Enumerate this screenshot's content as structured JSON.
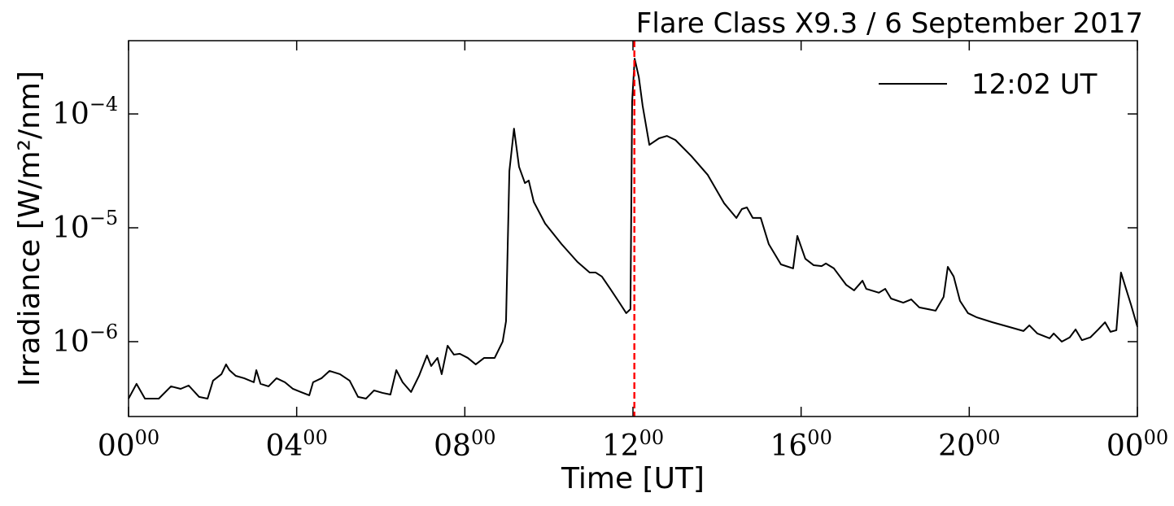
{
  "chart_data": {
    "type": "line",
    "title": "Flare Class X9.3 / 6 September 2017",
    "xlabel": "Time [UT]",
    "ylabel": "Irradiance [W/m²/nm]",
    "yscale": "log",
    "legend": "upper right",
    "x": [
      0,
      0.19,
      0.39,
      0.72,
      1.01,
      1.24,
      1.43,
      1.68,
      1.88,
      2.01,
      2.21,
      2.32,
      2.4,
      2.55,
      2.75,
      2.98,
      3.04,
      3.14,
      3.33,
      3.52,
      3.72,
      3.91,
      4.1,
      4.3,
      4.39,
      4.59,
      4.78,
      5.03,
      5.26,
      5.46,
      5.65,
      5.84,
      6.04,
      6.23,
      6.37,
      6.52,
      6.72,
      6.91,
      7.1,
      7.2,
      7.35,
      7.45,
      7.59,
      7.74,
      7.88,
      8.07,
      8.26,
      8.46,
      8.71,
      8.9,
      8.98,
      9.06,
      9.17,
      9.29,
      9.43,
      9.52,
      9.64,
      9.91,
      10.3,
      10.68,
      10.97,
      11.11,
      11.26,
      11.46,
      11.65,
      11.84,
      11.94,
      11.98,
      12.04,
      12.14,
      12.23,
      12.39,
      12.62,
      12.81,
      13.01,
      13.39,
      13.78,
      14.17,
      14.46,
      14.59,
      14.71,
      14.85,
      15.04,
      15.23,
      15.52,
      15.81,
      15.91,
      16.1,
      16.3,
      16.49,
      16.59,
      16.78,
      17.07,
      17.26,
      17.46,
      17.55,
      17.85,
      18.0,
      18.14,
      18.43,
      18.62,
      18.81,
      19.2,
      19.39,
      19.49,
      19.63,
      19.78,
      19.97,
      20.17,
      20.55,
      20.94,
      21.29,
      21.43,
      21.62,
      21.91,
      22.01,
      22.2,
      22.39,
      22.53,
      22.68,
      22.88,
      23.07,
      23.23,
      23.36,
      23.5,
      23.61,
      23.73,
      23.85,
      24.0
    ],
    "series": [
      {
        "name": "12:02 UT",
        "color": "#000000",
        "values": [
          3.16e-07,
          4.26e-07,
          3.16e-07,
          3.16e-07,
          4.05e-07,
          3.85e-07,
          4.12e-07,
          3.27e-07,
          3.16e-07,
          4.54e-07,
          5.18e-07,
          6.31e-07,
          5.62e-07,
          5.01e-07,
          4.77e-07,
          4.4e-07,
          5.62e-07,
          4.26e-07,
          4.05e-07,
          4.77e-07,
          4.4e-07,
          3.85e-07,
          3.61e-07,
          3.38e-07,
          4.4e-07,
          4.77e-07,
          5.53e-07,
          5.18e-07,
          4.54e-07,
          3.27e-07,
          3.16e-07,
          3.73e-07,
          3.55e-07,
          3.43e-07,
          5.62e-07,
          4.4e-07,
          3.61e-07,
          5.01e-07,
          7.56e-07,
          6.11e-07,
          7.2e-07,
          5.18e-07,
          9.21e-07,
          7.69e-07,
          7.82e-07,
          7.2e-07,
          6.31e-07,
          7.2e-07,
          7.2e-07,
          1e-06,
          1.51e-06,
          3.16e-05,
          7.43e-05,
          3.43e-05,
          2.47e-05,
          2.6e-05,
          1.69e-05,
          1.09e-05,
          7.2e-06,
          5.01e-06,
          4.05e-06,
          4.05e-06,
          3.73e-06,
          2.91e-06,
          2.28e-06,
          1.78e-06,
          1.93e-06,
          0.000128,
          0.000306,
          0.00021,
          0.000118,
          5.35e-05,
          6.11e-05,
          6.41e-05,
          5.9e-05,
          4.26e-05,
          2.91e-05,
          1.64e-05,
          1.22e-05,
          1.46e-05,
          1.51e-05,
          1.22e-05,
          1.22e-05,
          7.2e-06,
          4.77e-06,
          4.4e-06,
          8.49e-06,
          5.35e-06,
          4.69e-06,
          4.61e-06,
          4.86e-06,
          4.4e-06,
          3.16e-06,
          2.82e-06,
          3.43e-06,
          2.91e-06,
          2.69e-06,
          2.91e-06,
          2.39e-06,
          2.2e-06,
          2.35e-06,
          2e-06,
          1.87e-06,
          2.47e-06,
          4.54e-06,
          3.73e-06,
          2.28e-06,
          1.78e-06,
          1.64e-06,
          1.48e-06,
          1.35e-06,
          1.24e-06,
          1.39e-06,
          1.18e-06,
          1.07e-06,
          1.18e-06,
          1e-06,
          1.09e-06,
          1.28e-06,
          1.03e-06,
          1.09e-06,
          1.28e-06,
          1.48e-06,
          1.22e-06,
          1.26e-06,
          4.05e-06,
          2.91e-06,
          2.1e-06,
          1.35e-06
        ]
      }
    ],
    "vline": {
      "value": 12.0333,
      "color": "#ff0000"
    },
    "xlim": [
      0,
      24
    ],
    "xticks": [
      {
        "value": 0,
        "label": "00",
        "sup": "00"
      },
      {
        "value": 4,
        "label": "04",
        "sup": "00"
      },
      {
        "value": 8,
        "label": "08",
        "sup": "00"
      },
      {
        "value": 12,
        "label": "12",
        "sup": "00"
      },
      {
        "value": 16,
        "label": "16",
        "sup": "00"
      },
      {
        "value": 20,
        "label": "20",
        "sup": "00"
      },
      {
        "value": 24,
        "label": "00",
        "sup": "00"
      }
    ],
    "ylim": [
      2.2e-07,
      0.00044
    ],
    "yticks": [
      {
        "value": 1e-06,
        "label": "10",
        "sup": "−6"
      },
      {
        "value": 1e-05,
        "label": "10",
        "sup": "−5"
      },
      {
        "value": 0.0001,
        "label": "10",
        "sup": "−4"
      }
    ]
  }
}
